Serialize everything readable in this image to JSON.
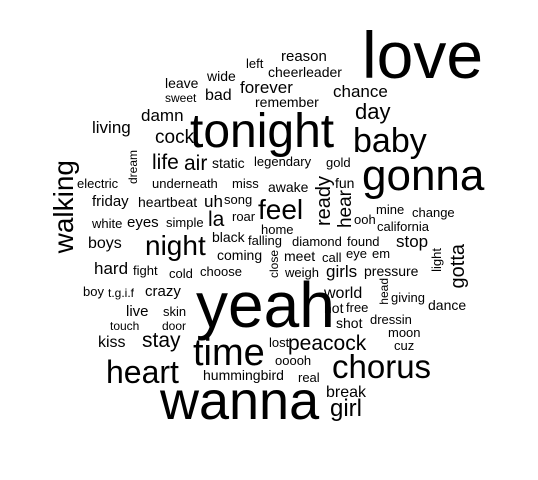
{
  "words": {
    "love": "love",
    "tonight": "tonight",
    "gonna": "gonna",
    "baby": "baby",
    "yeah": "yeah",
    "wanna": "wanna",
    "time": "time",
    "heart": "heart",
    "chorus": "chorus",
    "night": "night",
    "feel": "feel",
    "walking": "walking",
    "girl": "girl",
    "day": "day",
    "peacock": "peacock",
    "stay": "stay",
    "reason": "reason",
    "left": "left",
    "cheerleader": "cheerleader",
    "leave": "leave",
    "wide": "wide",
    "sweet": "sweet",
    "bad": "bad",
    "forever": "forever",
    "chance": "chance",
    "remember": "remember",
    "damn": "damn",
    "living": "living",
    "cock": "cock",
    "dream": "dream",
    "life": "life",
    "air": "air",
    "static": "static",
    "legendary": "legendary",
    "gold": "gold",
    "electric": "electric",
    "underneath": "underneath",
    "miss": "miss",
    "awake": "awake",
    "ready": "ready",
    "fun": "fun",
    "hear": "hear",
    "friday": "friday",
    "heartbeat": "heartbeat",
    "uh": "uh",
    "song": "song",
    "white": "white",
    "eyes": "eyes",
    "simple": "simple",
    "la": "la",
    "roar": "roar",
    "mine": "mine",
    "change": "change",
    "ooh": "ooh",
    "california": "california",
    "home": "home",
    "boys": "boys",
    "black": "black",
    "falling": "falling",
    "diamond": "diamond",
    "found": "found",
    "stop": "stop",
    "coming": "coming",
    "meet": "meet",
    "call": "call",
    "eye": "eye",
    "em": "em",
    "gotta": "gotta",
    "hard": "hard",
    "fight": "fight",
    "cold": "cold",
    "choose": "choose",
    "close": "close",
    "weigh": "weigh",
    "girls": "girls",
    "pressure": "pressure",
    "light": "light",
    "boy": "boy",
    "tgif": "t.g.i.f",
    "crazy": "crazy",
    "world": "world",
    "head": "head",
    "giving": "giving",
    "hot": "hot",
    "free": "free",
    "dance": "dance",
    "live": "live",
    "skin": "skin",
    "shot": "shot",
    "dressin": "dressin",
    "touch": "touch",
    "door": "door",
    "moon": "moon",
    "kiss": "kiss",
    "lost": "lost",
    "cuz": "cuz",
    "ooooh": "ooooh",
    "hummingbird": "hummingbird",
    "real": "real",
    "break": "break"
  }
}
